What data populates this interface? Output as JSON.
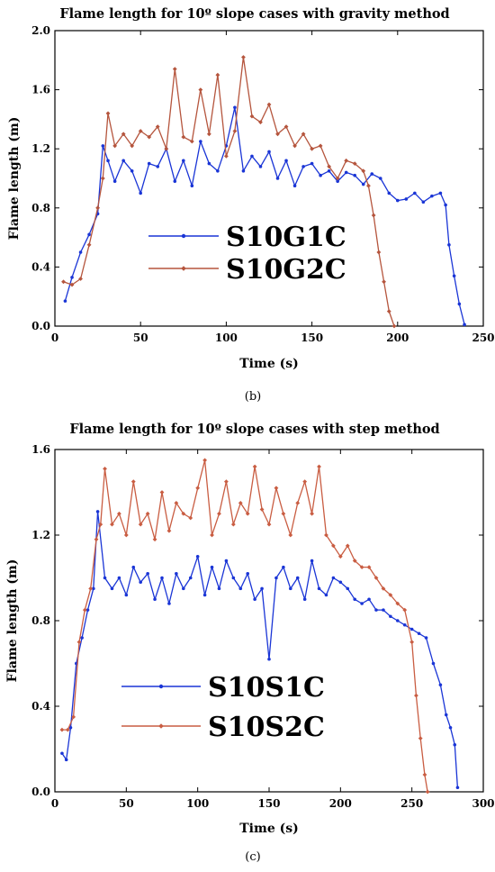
{
  "chart_data": [
    {
      "type": "line",
      "title": "Flame length for 10º slope cases with gravity method",
      "xlabel": "Time (s)",
      "ylabel": "Flame length (m)",
      "xlim": [
        0,
        250
      ],
      "ylim": [
        0,
        2.0
      ],
      "xticks": [
        0,
        50,
        100,
        150,
        200,
        250
      ],
      "yticks": [
        0.0,
        0.4,
        0.8,
        1.2,
        1.6,
        2.0
      ],
      "legend_position": "center-left",
      "caption": "(b)",
      "series": [
        {
          "name": "S10G1C",
          "color": "#1a35d6",
          "x": [
            6,
            10,
            15,
            20,
            25,
            28,
            31,
            35,
            40,
            45,
            50,
            55,
            60,
            65,
            70,
            75,
            80,
            85,
            90,
            95,
            100,
            105,
            110,
            115,
            120,
            125,
            130,
            135,
            140,
            145,
            150,
            155,
            160,
            165,
            170,
            175,
            180,
            185,
            190,
            195,
            200,
            205,
            210,
            215,
            220,
            225,
            228,
            230,
            233,
            236,
            239
          ],
          "y": [
            0.17,
            0.33,
            0.5,
            0.62,
            0.76,
            1.22,
            1.12,
            0.98,
            1.12,
            1.05,
            0.9,
            1.1,
            1.08,
            1.2,
            0.98,
            1.12,
            0.95,
            1.25,
            1.1,
            1.05,
            1.22,
            1.48,
            1.05,
            1.15,
            1.08,
            1.18,
            1.0,
            1.12,
            0.95,
            1.08,
            1.1,
            1.02,
            1.05,
            0.98,
            1.04,
            1.02,
            0.96,
            1.03,
            1.0,
            0.9,
            0.85,
            0.86,
            0.9,
            0.84,
            0.88,
            0.9,
            0.82,
            0.55,
            0.34,
            0.15,
            0.01
          ]
        },
        {
          "name": "S10G2C",
          "color": "#b5553d",
          "x": [
            5,
            10,
            15,
            20,
            25,
            28,
            31,
            35,
            40,
            45,
            50,
            55,
            60,
            65,
            70,
            75,
            80,
            85,
            90,
            95,
            100,
            105,
            110,
            115,
            120,
            125,
            130,
            135,
            140,
            145,
            150,
            155,
            160,
            165,
            170,
            175,
            180,
            183,
            186,
            189,
            192,
            195,
            198
          ],
          "y": [
            0.3,
            0.28,
            0.32,
            0.55,
            0.8,
            1.0,
            1.44,
            1.22,
            1.3,
            1.22,
            1.32,
            1.28,
            1.35,
            1.2,
            1.74,
            1.28,
            1.25,
            1.6,
            1.3,
            1.7,
            1.15,
            1.32,
            1.82,
            1.42,
            1.38,
            1.5,
            1.3,
            1.35,
            1.22,
            1.3,
            1.2,
            1.22,
            1.08,
            1.0,
            1.12,
            1.1,
            1.05,
            0.95,
            0.75,
            0.5,
            0.3,
            0.1,
            0.0
          ]
        }
      ]
    },
    {
      "type": "line",
      "title": "Flame length for 10º slope cases with step method",
      "xlabel": "Time (s)",
      "ylabel": "Flame length (m)",
      "xlim": [
        0,
        300
      ],
      "ylim": [
        0,
        1.6
      ],
      "xticks": [
        0,
        50,
        100,
        150,
        200,
        250,
        300
      ],
      "yticks": [
        0.0,
        0.4,
        0.8,
        1.2,
        1.6
      ],
      "legend_position": "center-left",
      "caption": "(c)",
      "series": [
        {
          "name": "S10S1C",
          "color": "#1a35d6",
          "x": [
            5,
            8,
            11,
            15,
            19,
            23,
            27,
            30,
            35,
            40,
            45,
            50,
            55,
            60,
            65,
            70,
            75,
            80,
            85,
            90,
            95,
            100,
            105,
            110,
            115,
            120,
            125,
            130,
            135,
            140,
            145,
            150,
            155,
            160,
            165,
            170,
            175,
            180,
            185,
            190,
            195,
            200,
            205,
            210,
            215,
            220,
            225,
            230,
            235,
            240,
            245,
            250,
            255,
            260,
            265,
            270,
            274,
            277,
            280,
            282
          ],
          "y": [
            0.18,
            0.15,
            0.3,
            0.6,
            0.72,
            0.85,
            0.95,
            1.31,
            1.0,
            0.95,
            1.0,
            0.92,
            1.05,
            0.98,
            1.02,
            0.9,
            1.0,
            0.88,
            1.02,
            0.95,
            1.0,
            1.1,
            0.92,
            1.05,
            0.95,
            1.08,
            1.0,
            0.95,
            1.02,
            0.9,
            0.95,
            0.62,
            1.0,
            1.05,
            0.95,
            1.0,
            0.9,
            1.08,
            0.95,
            0.92,
            1.0,
            0.98,
            0.95,
            0.9,
            0.88,
            0.9,
            0.85,
            0.85,
            0.82,
            0.8,
            0.78,
            0.76,
            0.74,
            0.72,
            0.6,
            0.5,
            0.36,
            0.3,
            0.22,
            0.02
          ]
        },
        {
          "name": "S10S2C",
          "color": "#c95d42",
          "x": [
            5,
            9,
            13,
            17,
            21,
            25,
            29,
            32,
            35,
            40,
            45,
            50,
            55,
            60,
            65,
            70,
            75,
            80,
            85,
            90,
            95,
            100,
            105,
            110,
            115,
            120,
            125,
            130,
            135,
            140,
            145,
            150,
            155,
            160,
            165,
            170,
            175,
            180,
            185,
            190,
            195,
            200,
            205,
            210,
            215,
            220,
            225,
            230,
            235,
            240,
            245,
            250,
            253,
            256,
            259,
            261
          ],
          "y": [
            0.29,
            0.29,
            0.35,
            0.7,
            0.85,
            0.95,
            1.18,
            1.25,
            1.51,
            1.25,
            1.3,
            1.2,
            1.45,
            1.25,
            1.3,
            1.18,
            1.4,
            1.22,
            1.35,
            1.3,
            1.28,
            1.42,
            1.55,
            1.2,
            1.3,
            1.45,
            1.25,
            1.35,
            1.3,
            1.52,
            1.32,
            1.25,
            1.42,
            1.3,
            1.2,
            1.35,
            1.45,
            1.3,
            1.52,
            1.2,
            1.15,
            1.1,
            1.15,
            1.08,
            1.05,
            1.05,
            1.0,
            0.95,
            0.92,
            0.88,
            0.85,
            0.7,
            0.45,
            0.25,
            0.08,
            0.0
          ]
        }
      ]
    }
  ]
}
